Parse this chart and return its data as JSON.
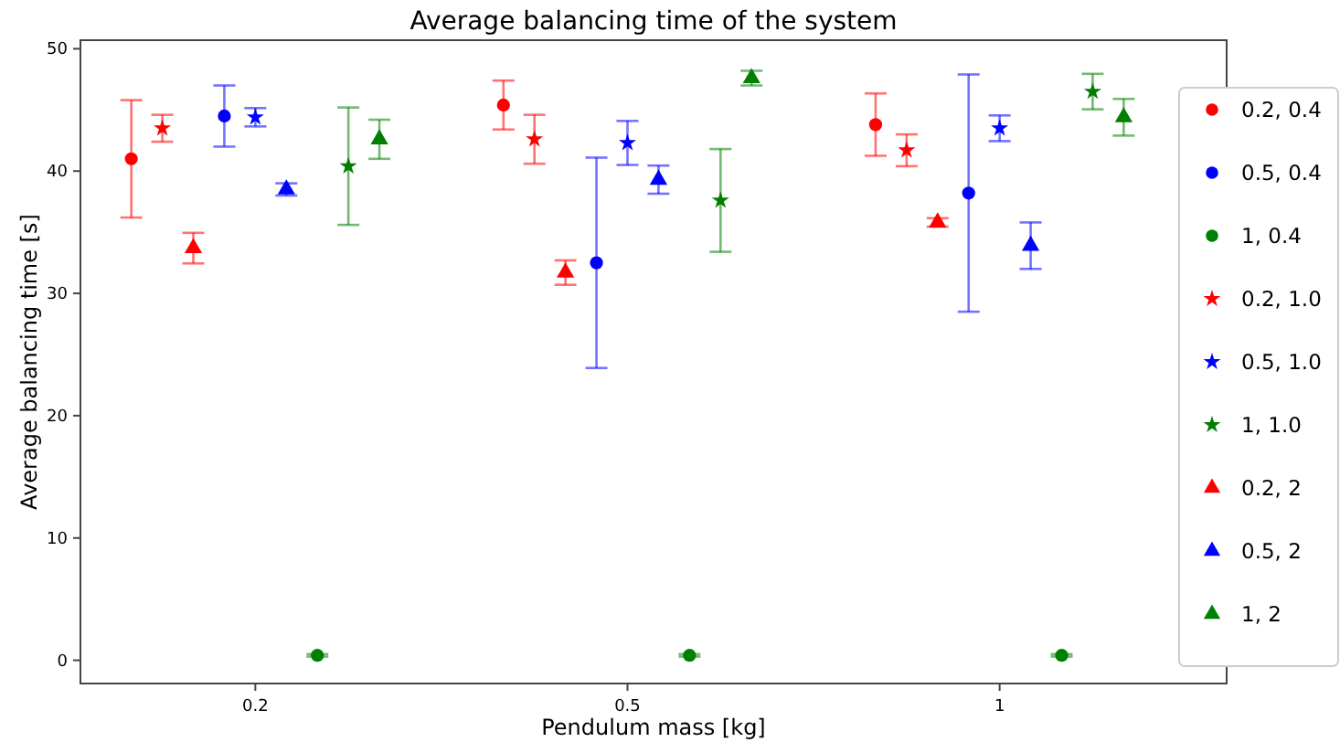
{
  "chart_data": {
    "type": "scatter",
    "title": "Average balancing time of the system",
    "xlabel": "Pendulum mass [kg]",
    "ylabel": "Average balancing time [s]",
    "categories": [
      "0.2",
      "0.5",
      "1"
    ],
    "ylim": [
      -1.9,
      50.7
    ],
    "yticks": [
      0,
      10,
      20,
      30,
      40,
      50
    ],
    "grid": false,
    "legend": "right",
    "series": [
      {
        "name": "0.2, 0.4",
        "color": "#ff0000",
        "marker": "circle",
        "values": [
          41,
          45.4,
          43.8
        ],
        "errors": [
          4.8,
          2,
          2.55
        ]
      },
      {
        "name": "0.5, 0.4",
        "color": "#0000ff",
        "marker": "circle",
        "values": [
          44.5,
          32.5,
          38.2
        ],
        "errors": [
          2.5,
          8.6,
          9.7
        ]
      },
      {
        "name": "1, 0.4",
        "color": "#008000",
        "marker": "circle",
        "values": [
          0.4,
          0.4,
          0.4
        ],
        "errors": [
          0.1,
          0.1,
          0.1
        ]
      },
      {
        "name": "0.2, 1.0",
        "color": "#ff0000",
        "marker": "star",
        "values": [
          43.5,
          42.6,
          41.7
        ],
        "errors": [
          1.1,
          2,
          1.3
        ]
      },
      {
        "name": "0.5, 1.0",
        "color": "#0000ff",
        "marker": "star",
        "values": [
          44.4,
          42.3,
          43.5
        ],
        "errors": [
          0.75,
          1.8,
          1.05
        ]
      },
      {
        "name": "1, 1.0",
        "color": "#008000",
        "marker": "star",
        "values": [
          40.4,
          37.6,
          46.5
        ],
        "errors": [
          4.8,
          4.2,
          1.45
        ]
      },
      {
        "name": "0.2, 2",
        "color": "#ff0000",
        "marker": "triangle",
        "values": [
          33.7,
          31.7,
          35.8
        ],
        "errors": [
          1.25,
          1,
          0.35
        ]
      },
      {
        "name": "0.5, 2",
        "color": "#0000ff",
        "marker": "triangle",
        "values": [
          38.5,
          39.3,
          33.9
        ],
        "errors": [
          0.5,
          1.15,
          1.9
        ]
      },
      {
        "name": "1, 2",
        "color": "#008000",
        "marker": "triangle",
        "values": [
          42.6,
          47.6,
          44.4
        ],
        "errors": [
          1.6,
          0.6,
          1.5
        ]
      }
    ]
  }
}
